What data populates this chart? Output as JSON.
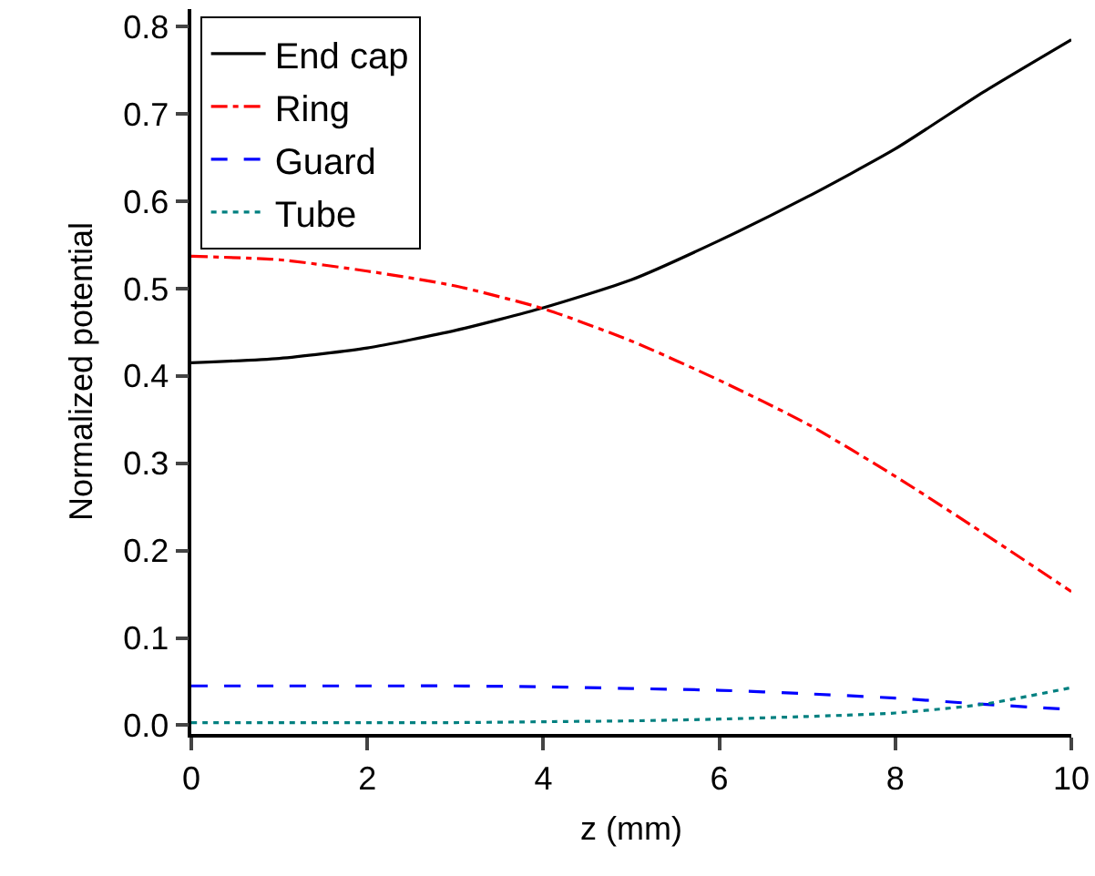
{
  "chart_data": {
    "type": "line",
    "xlabel": "z (mm)",
    "ylabel": "Normalized potential",
    "x": [
      0,
      1,
      2,
      3,
      4,
      5,
      6,
      7,
      8,
      9,
      10
    ],
    "series": [
      {
        "name": "End cap",
        "color": "#000000",
        "line_style": "solid",
        "values": [
          0.415,
          0.42,
          0.432,
          0.452,
          0.478,
          0.51,
          0.555,
          0.605,
          0.66,
          0.725,
          0.785
        ]
      },
      {
        "name": "Ring",
        "color": "#ff0000",
        "line_style": "dashdot",
        "values": [
          0.537,
          0.533,
          0.52,
          0.503,
          0.477,
          0.44,
          0.395,
          0.345,
          0.285,
          0.22,
          0.153
        ]
      },
      {
        "name": "Guard",
        "color": "#0000ff",
        "line_style": "dashed",
        "values": [
          0.045,
          0.045,
          0.045,
          0.045,
          0.044,
          0.042,
          0.04,
          0.036,
          0.031,
          0.024,
          0.018
        ]
      },
      {
        "name": "Tube",
        "color": "#008080",
        "line_style": "dotted",
        "values": [
          0.003,
          0.003,
          0.003,
          0.003,
          0.004,
          0.005,
          0.007,
          0.01,
          0.014,
          0.024,
          0.043
        ]
      }
    ],
    "xlim": [
      0,
      10
    ],
    "xticks": [
      0,
      2,
      4,
      6,
      8,
      10
    ],
    "ylim": [
      -0.01,
      0.82
    ],
    "yticks": [
      {
        "value": 0,
        "label": "0.0"
      },
      0.1,
      0.2,
      0.3,
      0.4,
      0.5,
      0.6,
      0.7,
      0.8
    ],
    "grid": false,
    "legend": "top left",
    "marker": "none"
  }
}
